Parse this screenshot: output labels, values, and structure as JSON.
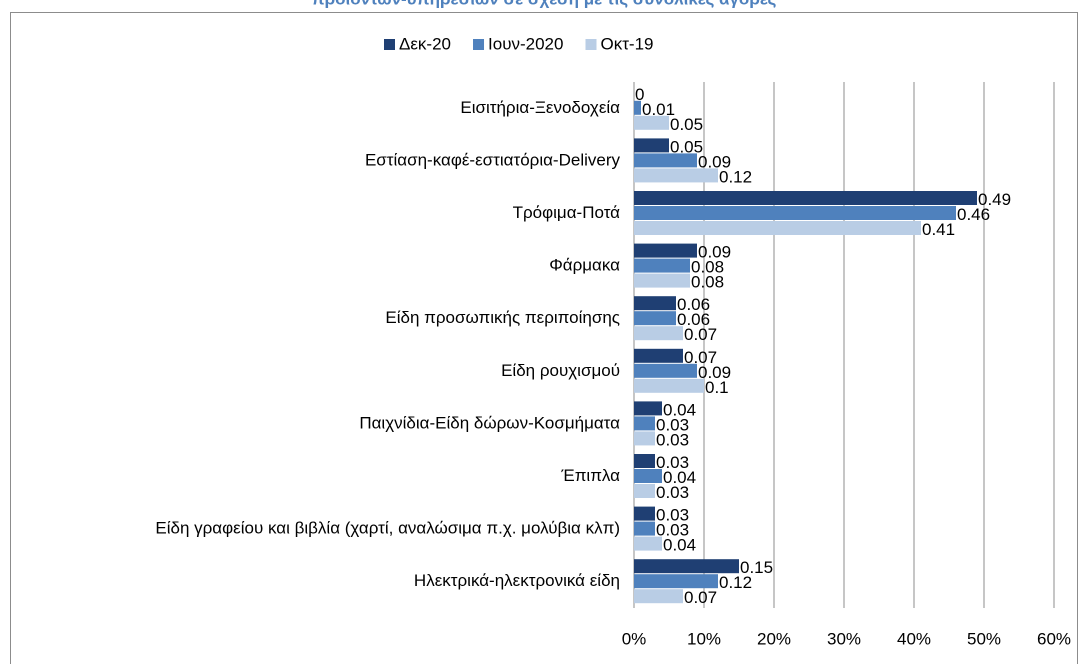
{
  "chart_data": {
    "type": "bar",
    "orientation": "horizontal",
    "title": "προϊόντων-υπηρεσιών σε σχέση με τις συνολικές αγορές",
    "categories": [
      "Εισιτήρια-Ξενοδοχεία",
      "Εστίαση-καφέ-εστιατόρια-Delivery",
      "Τρόφιμα-Ποτά",
      "Φάρμακα",
      "Είδη προσωπικής περιποίησης",
      "Είδη ρουχισμού",
      "Παιχνίδια-Είδη δώρων-Κοσμήματα",
      "Έπιπλα",
      "Είδη γραφείου και βιβλία (χαρτί, αναλώσιμα π.χ. μολύβια κλπ)",
      "Ηλεκτρικά-ηλεκτρονικά είδη"
    ],
    "series": [
      {
        "name": "Δεκ-20",
        "color": "#1f3f73",
        "values": [
          0,
          0.05,
          0.49,
          0.09,
          0.06,
          0.07,
          0.04,
          0.03,
          0.03,
          0.15
        ]
      },
      {
        "name": "Ιουν-2020",
        "color": "#4f81bd",
        "values": [
          0.01,
          0.09,
          0.46,
          0.08,
          0.06,
          0.09,
          0.03,
          0.04,
          0.03,
          0.12
        ]
      },
      {
        "name": "Οκτ-19",
        "color": "#b9cde5",
        "values": [
          0.05,
          0.12,
          0.41,
          0.08,
          0.07,
          0.1,
          0.03,
          0.03,
          0.04,
          0.07
        ]
      }
    ],
    "xlim": [
      0,
      0.6
    ],
    "xticks": [
      {
        "value": 0,
        "label": "0%"
      },
      {
        "value": 0.1,
        "label": "10%"
      },
      {
        "value": 0.2,
        "label": "20%"
      },
      {
        "value": 0.3,
        "label": "30%"
      },
      {
        "value": 0.4,
        "label": "40%"
      },
      {
        "value": 0.5,
        "label": "50%"
      },
      {
        "value": 0.6,
        "label": "60%"
      }
    ],
    "grid": true,
    "legend": "top"
  }
}
